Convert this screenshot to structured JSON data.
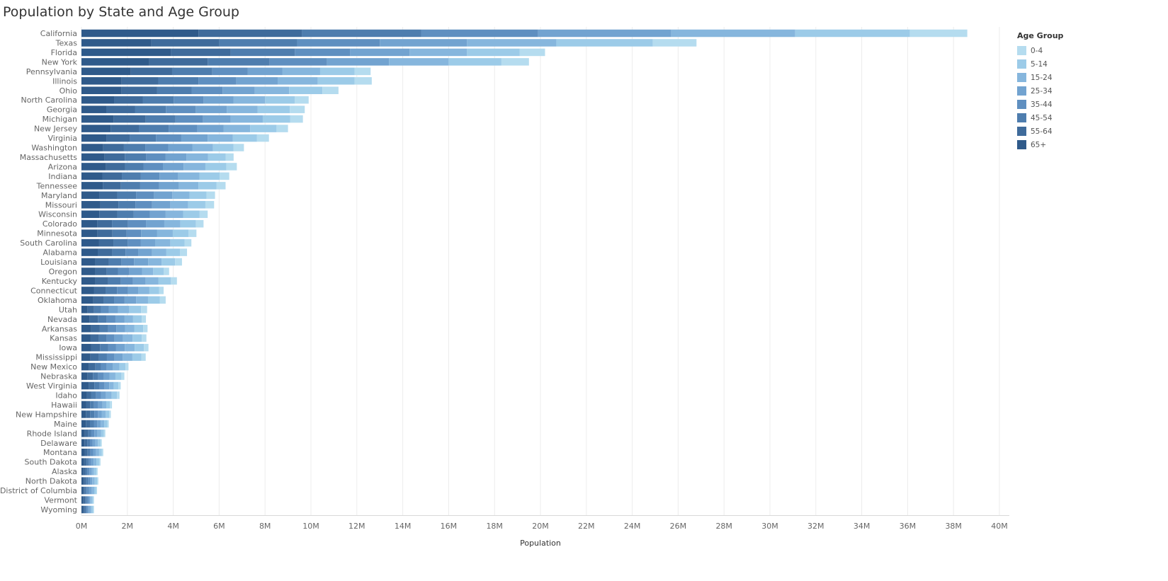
{
  "chart_data": {
    "type": "bar",
    "orientation": "horizontal",
    "stacked": true,
    "title": "Population by State and Age Group",
    "xlabel": "Population",
    "ylabel": "",
    "xlim": [
      0,
      40000000
    ],
    "x_ticks": [
      {
        "value": 0,
        "label": "0M"
      },
      {
        "value": 2000000,
        "label": "2M"
      },
      {
        "value": 4000000,
        "label": "4M"
      },
      {
        "value": 6000000,
        "label": "6M"
      },
      {
        "value": 8000000,
        "label": "8M"
      },
      {
        "value": 10000000,
        "label": "10M"
      },
      {
        "value": 12000000,
        "label": "12M"
      },
      {
        "value": 14000000,
        "label": "14M"
      },
      {
        "value": 16000000,
        "label": "16M"
      },
      {
        "value": 18000000,
        "label": "18M"
      },
      {
        "value": 20000000,
        "label": "20M"
      },
      {
        "value": 22000000,
        "label": "22M"
      },
      {
        "value": 24000000,
        "label": "24M"
      },
      {
        "value": 26000000,
        "label": "26M"
      },
      {
        "value": 28000000,
        "label": "28M"
      },
      {
        "value": 30000000,
        "label": "30M"
      },
      {
        "value": 32000000,
        "label": "32M"
      },
      {
        "value": 34000000,
        "label": "34M"
      },
      {
        "value": 36000000,
        "label": "36M"
      },
      {
        "value": 38000000,
        "label": "38M"
      },
      {
        "value": 40000000,
        "label": "40M"
      }
    ],
    "grid": true,
    "legend": {
      "title": "Age Group",
      "position": "right",
      "entries": [
        {
          "name": "0-4",
          "color": "#b5dcef"
        },
        {
          "name": "5-14",
          "color": "#9ccbe8"
        },
        {
          "name": "15-24",
          "color": "#86b6dd"
        },
        {
          "name": "25-34",
          "color": "#72a3d0"
        },
        {
          "name": "35-44",
          "color": "#5f8fc0"
        },
        {
          "name": "45-54",
          "color": "#4e7dae"
        },
        {
          "name": "55-64",
          "color": "#3f6b9b"
        },
        {
          "name": "65+",
          "color": "#2f5a8a"
        }
      ]
    },
    "stack_order": [
      "65+",
      "55-64",
      "45-54",
      "35-44",
      "25-34",
      "15-24",
      "5-14",
      "0-4"
    ],
    "categories": [
      "California",
      "Texas",
      "Florida",
      "New York",
      "Pennsylvania",
      "Illinois",
      "Ohio",
      "North Carolina",
      "Georgia",
      "Michigan",
      "New Jersey",
      "Virginia",
      "Washington",
      "Massachusetts",
      "Arizona",
      "Indiana",
      "Tennessee",
      "Maryland",
      "Missouri",
      "Wisconsin",
      "Colorado",
      "Minnesota",
      "South Carolina",
      "Alabama",
      "Louisiana",
      "Oregon",
      "Kentucky",
      "Connecticut",
      "Oklahoma",
      "Utah",
      "Nevada",
      "Arkansas",
      "Kansas",
      "Iowa",
      "Mississippi",
      "New Mexico",
      "Nebraska",
      "West Virginia",
      "Idaho",
      "Hawaii",
      "New Hampshire",
      "Maine",
      "Rhode Island",
      "Delaware",
      "Montana",
      "South Dakota",
      "Alaska",
      "North Dakota",
      "District of Columbia",
      "Vermont",
      "Wyoming"
    ],
    "series": [
      {
        "name": "65+",
        "values": [
          5100000,
          3050000,
          3900000,
          2950000,
          2150000,
          1750000,
          1750000,
          1420000,
          1080000,
          1400000,
          1270000,
          1100000,
          950000,
          1010000,
          1070000,
          910000,
          930000,
          790000,
          820000,
          780000,
          690000,
          700000,
          770000,
          710000,
          600000,
          600000,
          600000,
          540000,
          520000,
          270000,
          360000,
          420000,
          400000,
          430000,
          390000,
          330000,
          270000,
          320000,
          230000,
          200000,
          190000,
          190000,
          150000,
          130000,
          140000,
          120000,
          80000,
          100000,
          75000,
          85000,
          80000
        ]
      },
      {
        "name": "55-64",
        "values": [
          4500000,
          2950000,
          2600000,
          2550000,
          1800000,
          1600000,
          1550000,
          1250000,
          1250000,
          1400000,
          1230000,
          1000000,
          900000,
          880000,
          830000,
          850000,
          790000,
          770000,
          790000,
          780000,
          640000,
          650000,
          620000,
          630000,
          590000,
          500000,
          560000,
          510000,
          450000,
          280000,
          360000,
          380000,
          360000,
          380000,
          370000,
          280000,
          230000,
          240000,
          200000,
          180000,
          190000,
          180000,
          140000,
          120000,
          130000,
          100000,
          90000,
          90000,
          70000,
          80000,
          70000
        ]
      },
      {
        "name": "45-54",
        "values": [
          5200000,
          3400000,
          2800000,
          2700000,
          1750000,
          1750000,
          1500000,
          1350000,
          1350000,
          1300000,
          1300000,
          1150000,
          930000,
          930000,
          800000,
          830000,
          840000,
          820000,
          740000,
          720000,
          700000,
          620000,
          620000,
          580000,
          550000,
          490000,
          560000,
          500000,
          450000,
          300000,
          380000,
          360000,
          340000,
          360000,
          350000,
          240000,
          230000,
          230000,
          210000,
          170000,
          180000,
          170000,
          140000,
          120000,
          120000,
          100000,
          90000,
          90000,
          80000,
          75000,
          70000
        ]
      },
      {
        "name": "35-44",
        "values": [
          5100000,
          3600000,
          2400000,
          2500000,
          1550000,
          1650000,
          1350000,
          1300000,
          1300000,
          1200000,
          1250000,
          1100000,
          1000000,
          850000,
          850000,
          810000,
          830000,
          780000,
          730000,
          700000,
          780000,
          630000,
          580000,
          550000,
          550000,
          500000,
          520000,
          470000,
          460000,
          350000,
          380000,
          360000,
          340000,
          340000,
          330000,
          250000,
          240000,
          220000,
          210000,
          180000,
          160000,
          150000,
          130000,
          110000,
          120000,
          100000,
          90000,
          90000,
          100000,
          70000,
          65000
        ]
      },
      {
        "name": "25-34",
        "values": [
          5800000,
          3800000,
          2600000,
          2700000,
          1500000,
          1800000,
          1400000,
          1300000,
          1350000,
          1200000,
          1150000,
          1150000,
          1050000,
          900000,
          900000,
          820000,
          860000,
          800000,
          790000,
          690000,
          800000,
          700000,
          620000,
          610000,
          620000,
          550000,
          560000,
          450000,
          500000,
          400000,
          400000,
          380000,
          370000,
          380000,
          360000,
          270000,
          250000,
          200000,
          220000,
          190000,
          160000,
          150000,
          140000,
          120000,
          130000,
          110000,
          100000,
          100000,
          130000,
          65000,
          80000
        ]
      },
      {
        "name": "15-24",
        "values": [
          5400000,
          3900000,
          2500000,
          2600000,
          1650000,
          1750000,
          1500000,
          1380000,
          1350000,
          1400000,
          1150000,
          1100000,
          900000,
          950000,
          950000,
          920000,
          850000,
          750000,
          780000,
          760000,
          700000,
          680000,
          660000,
          620000,
          580000,
          480000,
          560000,
          490000,
          520000,
          480000,
          370000,
          400000,
          420000,
          430000,
          420000,
          280000,
          260000,
          200000,
          240000,
          160000,
          180000,
          150000,
          160000,
          120000,
          130000,
          120000,
          100000,
          110000,
          100000,
          80000,
          75000
        ]
      },
      {
        "name": "5-14",
        "values": [
          5000000,
          4200000,
          2300000,
          2300000,
          1500000,
          1600000,
          1450000,
          1300000,
          1400000,
          1200000,
          1150000,
          1050000,
          900000,
          760000,
          920000,
          880000,
          780000,
          740000,
          750000,
          720000,
          680000,
          690000,
          620000,
          600000,
          590000,
          470000,
          540000,
          430000,
          510000,
          520000,
          380000,
          390000,
          400000,
          400000,
          390000,
          270000,
          260000,
          200000,
          240000,
          160000,
          150000,
          140000,
          120000,
          110000,
          120000,
          120000,
          100000,
          100000,
          80000,
          60000,
          70000
        ]
      },
      {
        "name": "0-4",
        "values": [
          2500000,
          1900000,
          1100000,
          1200000,
          700000,
          750000,
          700000,
          600000,
          650000,
          550000,
          500000,
          520000,
          450000,
          350000,
          450000,
          420000,
          400000,
          370000,
          380000,
          350000,
          330000,
          340000,
          300000,
          300000,
          300000,
          230000,
          260000,
          190000,
          260000,
          260000,
          180000,
          190000,
          200000,
          200000,
          190000,
          130000,
          130000,
          100000,
          110000,
          90000,
          70000,
          60000,
          60000,
          55000,
          60000,
          60000,
          55000,
          55000,
          45000,
          30000,
          35000
        ]
      }
    ]
  }
}
